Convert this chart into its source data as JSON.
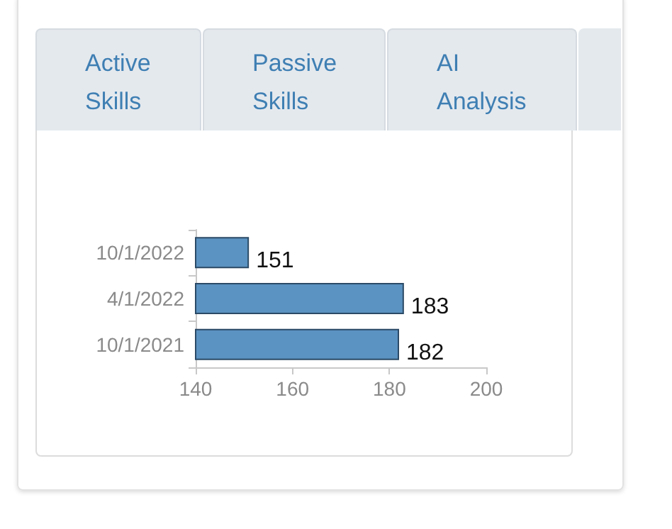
{
  "chart_data": {
    "type": "bar",
    "orientation": "horizontal",
    "annotations": [
      "Active Skills",
      "Passive Skills",
      "AI Analysis"
    ],
    "categories": [
      "10/1/2022",
      "4/1/2022",
      "10/1/2021"
    ],
    "values": [
      151,
      183,
      182
    ],
    "color": "#5b93c2",
    "xlim": [
      140,
      200
    ],
    "xticks": [
      140,
      160,
      180,
      200
    ],
    "grid": false,
    "data_labels": true
  }
}
